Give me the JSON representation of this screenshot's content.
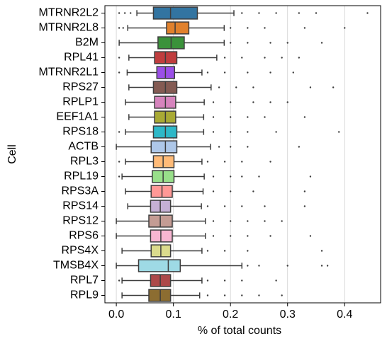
{
  "chart_data": {
    "type": "boxplot",
    "x_label": "% of total counts",
    "y_label": "Cell",
    "categories": [
      "MTRNR2L2",
      "MTRNR2L8",
      "B2M",
      "RPL41",
      "MTRNR2L1",
      "RPS27",
      "RPLP1",
      "EEF1A1",
      "RPS18",
      "ACTB",
      "RPL3",
      "RPL19",
      "RPS3A",
      "RPS14",
      "RPS12",
      "RPS6",
      "RPS4X",
      "TMSB4X",
      "RPL7",
      "RPL9"
    ],
    "colors": [
      "#3274a1",
      "#e1812c",
      "#3a923a",
      "#c03d3e",
      "#9b4fe8",
      "#845b53",
      "#d684bd",
      "#a9aa35",
      "#2eb8c8",
      "#aec7e8",
      "#ffbb78",
      "#98df8a",
      "#ff9896",
      "#c5b0d5",
      "#c49c94",
      "#f7b6d2",
      "#dbdb8d",
      "#9edae5",
      "#ad494a",
      "#8c6d31"
    ],
    "boxes": [
      {
        "whislo": 0.036,
        "q1": 0.065,
        "median": 0.095,
        "q3": 0.142,
        "whishi": 0.206,
        "outliers": [
          0.005,
          0.015,
          0.025,
          0.22,
          0.25,
          0.28,
          0.32,
          0.35,
          0.44
        ]
      },
      {
        "whislo": 0.02,
        "q1": 0.088,
        "median": 0.103,
        "q3": 0.127,
        "whishi": 0.189,
        "outliers": [
          0.005,
          0.012,
          0.2,
          0.23,
          0.26,
          0.33,
          0.4
        ]
      },
      {
        "whislo": 0.005,
        "q1": 0.073,
        "median": 0.096,
        "q3": 0.119,
        "whishi": 0.189,
        "outliers": [
          0.2,
          0.23,
          0.27,
          0.3,
          0.36
        ]
      },
      {
        "whislo": 0.022,
        "q1": 0.067,
        "median": 0.086,
        "q3": 0.106,
        "whishi": 0.176,
        "outliers": [
          0.005,
          0.19,
          0.22,
          0.26,
          0.29,
          0.32
        ]
      },
      {
        "whislo": 0.019,
        "q1": 0.071,
        "median": 0.086,
        "q3": 0.102,
        "whishi": 0.15,
        "outliers": [
          0.005,
          0.16,
          0.19,
          0.23,
          0.27,
          0.31
        ]
      },
      {
        "whislo": 0.022,
        "q1": 0.065,
        "median": 0.086,
        "q3": 0.106,
        "whishi": 0.166,
        "outliers": [
          0.18,
          0.21,
          0.24,
          0.34,
          0.38
        ]
      },
      {
        "whislo": 0.016,
        "q1": 0.067,
        "median": 0.086,
        "q3": 0.104,
        "whishi": 0.154,
        "outliers": [
          0.17,
          0.2,
          0.24,
          0.27,
          0.3
        ]
      },
      {
        "whislo": 0.022,
        "q1": 0.067,
        "median": 0.086,
        "q3": 0.104,
        "whishi": 0.153,
        "outliers": [
          0.17,
          0.2,
          0.23,
          0.26,
          0.33
        ]
      },
      {
        "whislo": 0.016,
        "q1": 0.065,
        "median": 0.086,
        "q3": 0.106,
        "whishi": 0.153,
        "outliers": [
          0.005,
          0.17,
          0.2,
          0.23,
          0.28,
          0.39
        ]
      },
      {
        "whislo": 0.0,
        "q1": 0.061,
        "median": 0.086,
        "q3": 0.106,
        "whishi": 0.165,
        "outliers": [
          0.18,
          0.2,
          0.23,
          0.32
        ]
      },
      {
        "whislo": 0.016,
        "q1": 0.065,
        "median": 0.082,
        "q3": 0.101,
        "whishi": 0.15,
        "outliers": [
          0.005,
          0.16,
          0.19,
          0.22,
          0.27
        ]
      },
      {
        "whislo": 0.01,
        "q1": 0.063,
        "median": 0.082,
        "q3": 0.101,
        "whishi": 0.154,
        "outliers": [
          0.005,
          0.17,
          0.2,
          0.22,
          0.25,
          0.34
        ]
      },
      {
        "whislo": 0.016,
        "q1": 0.061,
        "median": 0.08,
        "q3": 0.098,
        "whishi": 0.152,
        "outliers": [
          0.17,
          0.2,
          0.24,
          0.33
        ]
      },
      {
        "whislo": 0.02,
        "q1": 0.06,
        "median": 0.077,
        "q3": 0.095,
        "whishi": 0.149,
        "outliers": [
          0.16,
          0.19,
          0.22,
          0.26,
          0.33
        ]
      },
      {
        "whislo": 0.0,
        "q1": 0.057,
        "median": 0.077,
        "q3": 0.098,
        "whishi": 0.156,
        "outliers": [
          0.17,
          0.2,
          0.23,
          0.26,
          0.29
        ]
      },
      {
        "whislo": 0.0,
        "q1": 0.06,
        "median": 0.078,
        "q3": 0.098,
        "whishi": 0.156,
        "outliers": [
          0.17,
          0.2,
          0.23,
          0.27,
          0.34
        ]
      },
      {
        "whislo": 0.01,
        "q1": 0.061,
        "median": 0.078,
        "q3": 0.095,
        "whishi": 0.15,
        "outliers": [
          0.16,
          0.19,
          0.23,
          0.36
        ]
      },
      {
        "whislo": 0.0,
        "q1": 0.039,
        "median": 0.091,
        "q3": 0.112,
        "whishi": 0.22,
        "outliers": [
          0.23,
          0.25,
          0.3,
          0.36,
          0.37
        ]
      },
      {
        "whislo": 0.01,
        "q1": 0.06,
        "median": 0.077,
        "q3": 0.095,
        "whishi": 0.15,
        "outliers": [
          0.005,
          0.16,
          0.19,
          0.22,
          0.28
        ]
      },
      {
        "whislo": 0.01,
        "q1": 0.057,
        "median": 0.077,
        "q3": 0.095,
        "whishi": 0.146,
        "outliers": [
          0.16,
          0.19,
          0.22,
          0.25,
          0.29
        ]
      }
    ],
    "xlim": [
      -0.02,
      0.463
    ],
    "xticks": [
      {
        "value": 0,
        "label": "0.0"
      },
      0.1,
      0.2,
      0.3,
      0.4
    ],
    "grid": true
  }
}
